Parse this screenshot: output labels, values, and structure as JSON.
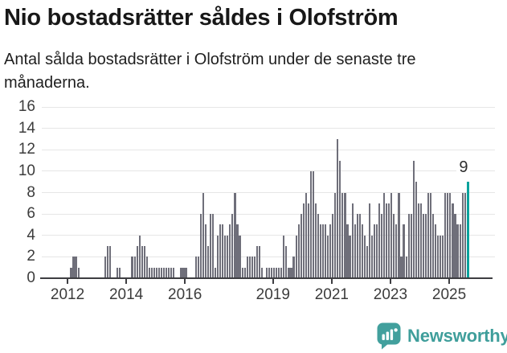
{
  "header": {
    "title": "Nio bostadsrätter såldes i Olofström",
    "subtitle": "Antal sålda bostadsrätter i Olofström under de senaste tre månaderna."
  },
  "chart_data": {
    "type": "bar",
    "title": "Nio bostadsrätter såldes i Olofström",
    "frequency": "monthly",
    "x_start_month": "2011-08",
    "x_end_month": "2025-08",
    "values": [
      0,
      0,
      0,
      0,
      0,
      0,
      1,
      2,
      2,
      1,
      0,
      0,
      0,
      0,
      0,
      0,
      0,
      0,
      0,
      0,
      2,
      3,
      3,
      0,
      0,
      1,
      1,
      0,
      0,
      0,
      0,
      2,
      2,
      3,
      4,
      3,
      3,
      2,
      1,
      1,
      1,
      1,
      1,
      1,
      1,
      1,
      1,
      1,
      1,
      0,
      0,
      1,
      1,
      1,
      0,
      0,
      0,
      2,
      2,
      6,
      8,
      5,
      3,
      6,
      6,
      1,
      4,
      5,
      5,
      4,
      4,
      5,
      6,
      8,
      5,
      4,
      1,
      1,
      2,
      2,
      2,
      2,
      3,
      3,
      1,
      0,
      1,
      1,
      1,
      1,
      1,
      1,
      1,
      4,
      3,
      1,
      1,
      2,
      4,
      5,
      6,
      7,
      8,
      7,
      10,
      10,
      7,
      6,
      5,
      5,
      5,
      4,
      5,
      6,
      8,
      13,
      11,
      8,
      8,
      5,
      4,
      7,
      5,
      6,
      6,
      5,
      4,
      3,
      7,
      4,
      5,
      5,
      7,
      6,
      8,
      7,
      7,
      8,
      6,
      5,
      8,
      2,
      5,
      2,
      6,
      6,
      11,
      9,
      7,
      7,
      6,
      6,
      8,
      8,
      6,
      5,
      4,
      4,
      4,
      8,
      8,
      8,
      7,
      6,
      5,
      5,
      8,
      8,
      9
    ],
    "highlight": {
      "index": 168,
      "value": 9,
      "label": "9",
      "month": "2025-08"
    },
    "ylim": [
      0,
      16
    ],
    "y_ticks": [
      0,
      2,
      4,
      6,
      8,
      10,
      12,
      14,
      16
    ],
    "x_tick_years": [
      2012,
      2014,
      2016,
      2019,
      2021,
      2023,
      2025
    ],
    "grid": true,
    "legend": "none",
    "bar_color": "#6f6f7a",
    "highlight_color": "#0ba29c"
  },
  "footer": {
    "brand": "Newsworthy",
    "brand_color": "#3f9e9b",
    "icon_color": "#42a09d"
  }
}
